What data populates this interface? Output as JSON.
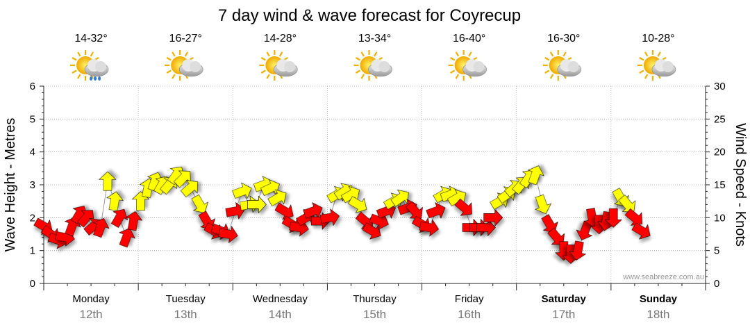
{
  "chart_data": {
    "type": "line",
    "title": "7 day wind & wave forecast for Coyrecup",
    "left_axis": {
      "label": "Wave Height - Metres",
      "ticks": [
        "0",
        "1",
        "2",
        "3",
        "4",
        "5",
        "6"
      ],
      "ylim": [
        0,
        6
      ]
    },
    "right_axis": {
      "label": "Wind Speed - Knots",
      "ticks": [
        "0",
        "5",
        "10",
        "15",
        "20",
        "25",
        "30"
      ],
      "ylim": [
        0,
        30
      ]
    },
    "days": [
      {
        "name": "Monday",
        "date": "12th",
        "temp": "14-32°",
        "bold": false,
        "icon": "sun-cloud-rain-icon"
      },
      {
        "name": "Tuesday",
        "date": "13th",
        "temp": "16-27°",
        "bold": false,
        "icon": "sun-cloud-icon"
      },
      {
        "name": "Wednesday",
        "date": "14th",
        "temp": "14-28°",
        "bold": false,
        "icon": "sun-cloud-icon"
      },
      {
        "name": "Thursday",
        "date": "15th",
        "temp": "13-34°",
        "bold": false,
        "icon": "sun-cloud-icon"
      },
      {
        "name": "Friday",
        "date": "16th",
        "temp": "16-40°",
        "bold": false,
        "icon": "sun-cloud-icon"
      },
      {
        "name": "Saturday",
        "date": "17th",
        "temp": "16-30°",
        "bold": true,
        "icon": "sun-cloud-icon"
      },
      {
        "name": "Sunday",
        "date": "18th",
        "temp": "10-28°",
        "bold": true,
        "icon": "sun-cloud-icon"
      }
    ],
    "wind_series": {
      "name": "Wind",
      "points": [
        {
          "x": 0.0,
          "knots": 8.7,
          "dir": 300
        },
        {
          "x": 0.15,
          "knots": 7.5,
          "dir": 305
        },
        {
          "x": 0.3,
          "knots": 6.6,
          "dir": 290
        },
        {
          "x": 0.45,
          "knots": 7.0,
          "dir": 280
        },
        {
          "x": 0.6,
          "knots": 8.7,
          "dir": 200
        },
        {
          "x": 0.75,
          "knots": 10.5,
          "dir": 210
        },
        {
          "x": 0.9,
          "knots": 10.0,
          "dir": 220
        },
        {
          "x": 1.05,
          "knots": 8.7,
          "dir": 230
        },
        {
          "x": 1.2,
          "knots": 8.5,
          "dir": 200
        },
        {
          "x": 1.35,
          "knots": 15.5,
          "dir": 180
        },
        {
          "x": 1.5,
          "knots": 12.5,
          "dir": 190
        },
        {
          "x": 1.6,
          "knots": 10.0,
          "dir": 210
        },
        {
          "x": 1.75,
          "knots": 7.0,
          "dir": 200
        },
        {
          "x": 1.9,
          "knots": 9.5,
          "dir": 190
        },
        {
          "x": 2.05,
          "knots": 12.5,
          "dir": 180
        },
        {
          "x": 2.2,
          "knots": 14.5,
          "dir": 190
        },
        {
          "x": 2.35,
          "knots": 15.5,
          "dir": 200
        },
        {
          "x": 2.5,
          "knots": 15.0,
          "dir": 210
        },
        {
          "x": 2.65,
          "knots": 15.0,
          "dir": 220
        },
        {
          "x": 2.8,
          "knots": 16.5,
          "dir": 215
        },
        {
          "x": 2.95,
          "knots": 16.0,
          "dir": 225
        },
        {
          "x": 3.1,
          "knots": 14.5,
          "dir": 230
        },
        {
          "x": 3.3,
          "knots": 12.0,
          "dir": 330
        },
        {
          "x": 3.45,
          "knots": 9.5,
          "dir": 330
        },
        {
          "x": 3.6,
          "knots": 8.0,
          "dir": 300
        },
        {
          "x": 3.75,
          "knots": 8.0,
          "dir": 290
        },
        {
          "x": 3.9,
          "knots": 7.5,
          "dir": 280
        },
        {
          "x": 4.05,
          "knots": 11.0,
          "dir": 260
        },
        {
          "x": 4.2,
          "knots": 14.0,
          "dir": 250
        },
        {
          "x": 4.35,
          "knots": 12.0,
          "dir": 260
        },
        {
          "x": 4.5,
          "knots": 12.0,
          "dir": 270
        },
        {
          "x": 4.65,
          "knots": 15.0,
          "dir": 250
        },
        {
          "x": 4.8,
          "knots": 14.5,
          "dir": 245
        },
        {
          "x": 4.95,
          "knots": 13.0,
          "dir": 240
        },
        {
          "x": 5.1,
          "knots": 11.0,
          "dir": 300
        },
        {
          "x": 5.25,
          "knots": 9.0,
          "dir": 300
        },
        {
          "x": 5.4,
          "knots": 8.5,
          "dir": 280
        },
        {
          "x": 5.55,
          "knots": 10.0,
          "dir": 240
        },
        {
          "x": 5.7,
          "knots": 11.0,
          "dir": 250
        },
        {
          "x": 5.85,
          "knots": 9.5,
          "dir": 270
        },
        {
          "x": 6.05,
          "knots": 10.0,
          "dir": 260
        },
        {
          "x": 6.2,
          "knots": 13.5,
          "dir": 240
        },
        {
          "x": 6.35,
          "knots": 14.0,
          "dir": 235
        },
        {
          "x": 6.5,
          "knots": 13.5,
          "dir": 240
        },
        {
          "x": 6.65,
          "knots": 12.0,
          "dir": 300
        },
        {
          "x": 6.8,
          "knots": 9.5,
          "dir": 310
        },
        {
          "x": 6.95,
          "knots": 8.0,
          "dir": 300
        },
        {
          "x": 7.1,
          "knots": 9.5,
          "dir": 290
        },
        {
          "x": 7.25,
          "knots": 11.0,
          "dir": 250
        },
        {
          "x": 7.4,
          "knots": 12.5,
          "dir": 240
        },
        {
          "x": 7.55,
          "knots": 13.0,
          "dir": 235
        },
        {
          "x": 7.7,
          "knots": 11.5,
          "dir": 250
        },
        {
          "x": 7.85,
          "knots": 11.0,
          "dir": 320
        },
        {
          "x": 8.0,
          "knots": 9.0,
          "dir": 300
        },
        {
          "x": 8.15,
          "knots": 8.5,
          "dir": 280
        },
        {
          "x": 8.3,
          "knots": 11.0,
          "dir": 250
        },
        {
          "x": 8.45,
          "knots": 13.5,
          "dir": 240
        },
        {
          "x": 8.6,
          "knots": 13.5,
          "dir": 250
        },
        {
          "x": 8.75,
          "knots": 13.0,
          "dir": 240
        },
        {
          "x": 8.9,
          "knots": 11.5,
          "dir": 310
        },
        {
          "x": 9.05,
          "knots": 8.5,
          "dir": 270
        },
        {
          "x": 9.2,
          "knots": 8.5,
          "dir": 270
        },
        {
          "x": 9.35,
          "knots": 8.5,
          "dir": 270
        },
        {
          "x": 9.5,
          "knots": 10.0,
          "dir": 270
        },
        {
          "x": 9.65,
          "knots": 12.5,
          "dir": 240
        },
        {
          "x": 9.8,
          "knots": 13.5,
          "dir": 235
        },
        {
          "x": 9.95,
          "knots": 14.5,
          "dir": 230
        },
        {
          "x": 10.1,
          "knots": 15.0,
          "dir": 220
        },
        {
          "x": 10.25,
          "knots": 16.0,
          "dir": 215
        },
        {
          "x": 10.4,
          "knots": 16.5,
          "dir": 200
        },
        {
          "x": 10.55,
          "knots": 12.0,
          "dir": 340
        },
        {
          "x": 10.7,
          "knots": 9.0,
          "dir": 330
        },
        {
          "x": 10.85,
          "knots": 7.0,
          "dir": 320
        },
        {
          "x": 11.0,
          "knots": 5.0,
          "dir": 0
        },
        {
          "x": 11.15,
          "knots": 4.5,
          "dir": 0
        },
        {
          "x": 11.3,
          "knots": 5.0,
          "dir": 10
        },
        {
          "x": 11.45,
          "knots": 8.0,
          "dir": 20
        },
        {
          "x": 11.6,
          "knots": 10.0,
          "dir": 350
        },
        {
          "x": 11.75,
          "knots": 9.0,
          "dir": 0
        },
        {
          "x": 11.9,
          "knots": 9.5,
          "dir": 10
        },
        {
          "x": 12.05,
          "knots": 10.0,
          "dir": 0
        },
        {
          "x": 12.2,
          "knots": 13.0,
          "dir": 330
        },
        {
          "x": 12.35,
          "knots": 12.0,
          "dir": 320
        },
        {
          "x": 12.5,
          "knots": 10.0,
          "dir": 310
        },
        {
          "x": 12.65,
          "knots": 8.0,
          "dir": 300
        }
      ]
    },
    "grid": true,
    "watermark": "www.seabreeze.com.au"
  }
}
